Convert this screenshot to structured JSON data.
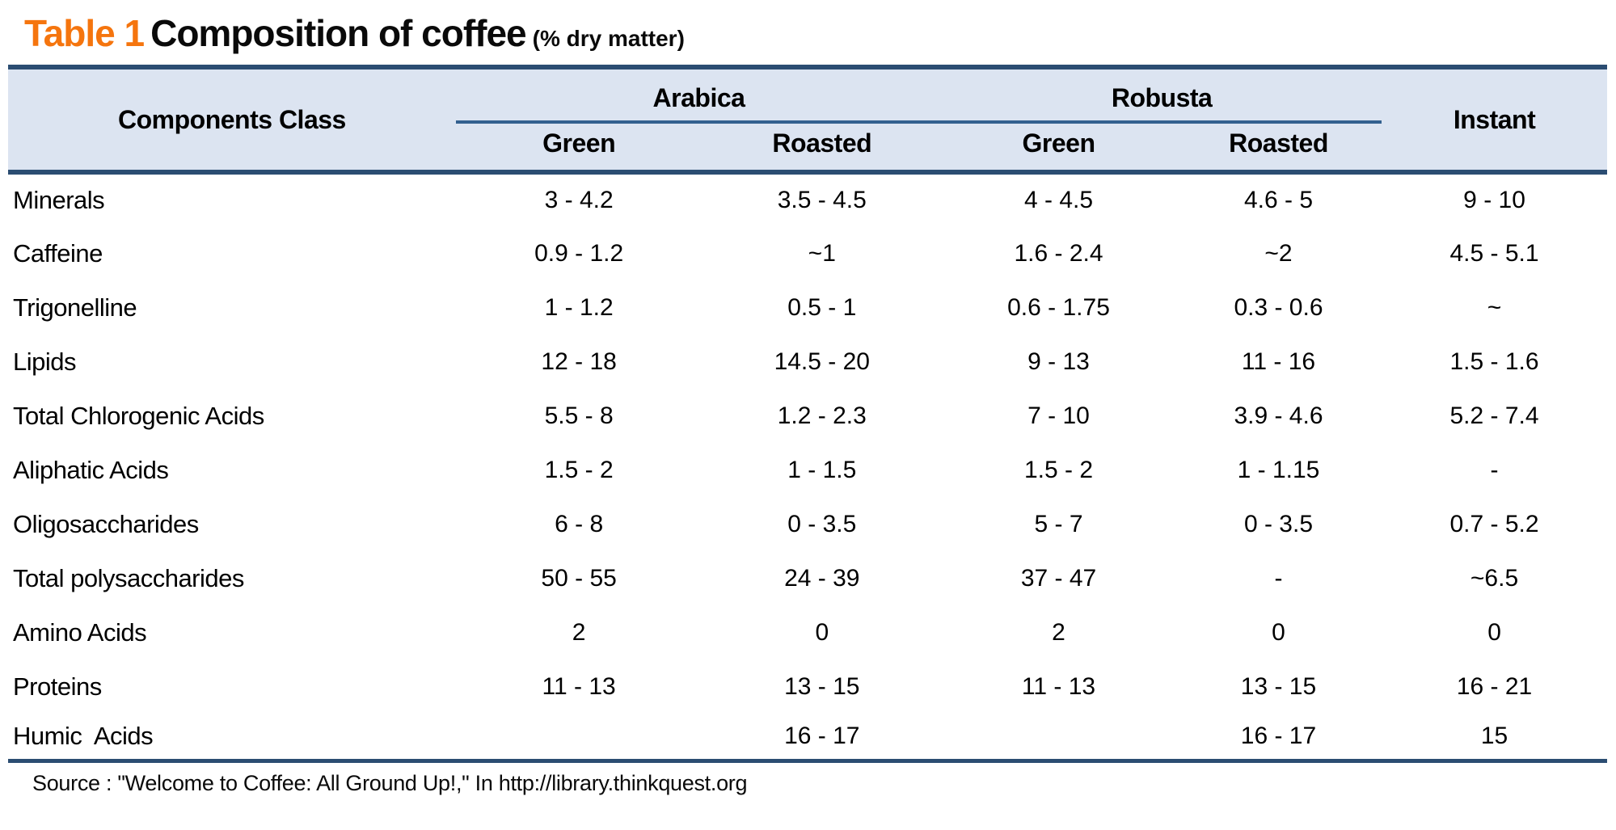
{
  "title": {
    "tag": "Table 1",
    "main": "Composition of coffee",
    "suffix": "(% dry matter)"
  },
  "header": {
    "components": "Components Class",
    "arabica": "Arabica",
    "robusta": "Robusta",
    "instant": "Instant",
    "sub": [
      "Green",
      "Roasted",
      "Green",
      "Roasted"
    ]
  },
  "chart_data": {
    "type": "table",
    "title": "Table 1 Composition of coffee (% dry matter)",
    "columns": [
      "Components Class",
      "Arabica Green",
      "Arabica Roasted",
      "Robusta Green",
      "Robusta Roasted",
      "Instant"
    ],
    "rows": [
      {
        "component": "Minerals",
        "values": [
          "3 - 4.2",
          "3.5 - 4.5",
          "4 - 4.5",
          "4.6 - 5",
          "9 - 10"
        ]
      },
      {
        "component": "Caffeine",
        "values": [
          "0.9 - 1.2",
          "~1",
          "1.6 - 2.4",
          "~2",
          "4.5 - 5.1"
        ]
      },
      {
        "component": "Trigonelline",
        "values": [
          "1 - 1.2",
          "0.5 - 1",
          "0.6 - 1.75",
          "0.3 - 0.6",
          "~"
        ]
      },
      {
        "component": "Lipids",
        "values": [
          "12 - 18",
          "14.5 - 20",
          "9 - 13",
          "11 - 16",
          "1.5 - 1.6"
        ]
      },
      {
        "component": "Total Chlorogenic Acids",
        "values": [
          "5.5 - 8",
          "1.2 - 2.3",
          "7 - 10",
          "3.9 - 4.6",
          "5.2 - 7.4"
        ]
      },
      {
        "component": "Aliphatic Acids",
        "values": [
          "1.5 - 2",
          "1 - 1.5",
          "1.5 - 2",
          "1 - 1.15",
          "-"
        ]
      },
      {
        "component": "Oligosaccharides",
        "values": [
          "6 - 8",
          "0 - 3.5",
          "5 - 7",
          "0 - 3.5",
          "0.7 - 5.2"
        ]
      },
      {
        "component": "Total polysaccharides",
        "values": [
          "50 - 55",
          "24 - 39",
          "37 - 47",
          "-",
          "~6.5"
        ]
      },
      {
        "component": "Amino Acids",
        "values": [
          "2",
          "0",
          "2",
          "0",
          "0"
        ]
      },
      {
        "component": "Proteins",
        "values": [
          "11 - 13",
          "13 - 15",
          "11 - 13",
          "13 - 15",
          "16 - 21"
        ]
      },
      {
        "component": "Humic  Acids",
        "values": [
          "",
          "16 - 17",
          "",
          "16 - 17",
          "15"
        ]
      }
    ]
  },
  "source": "Source : \"Welcome to Coffee: All Ground Up!,\" In http://library.thinkquest.org",
  "colors": {
    "accent_orange": "#f5750e",
    "header_bg": "#dce4f1",
    "border_dark": "#2b4d72",
    "border_mid": "#33608f",
    "text": "#000000"
  }
}
